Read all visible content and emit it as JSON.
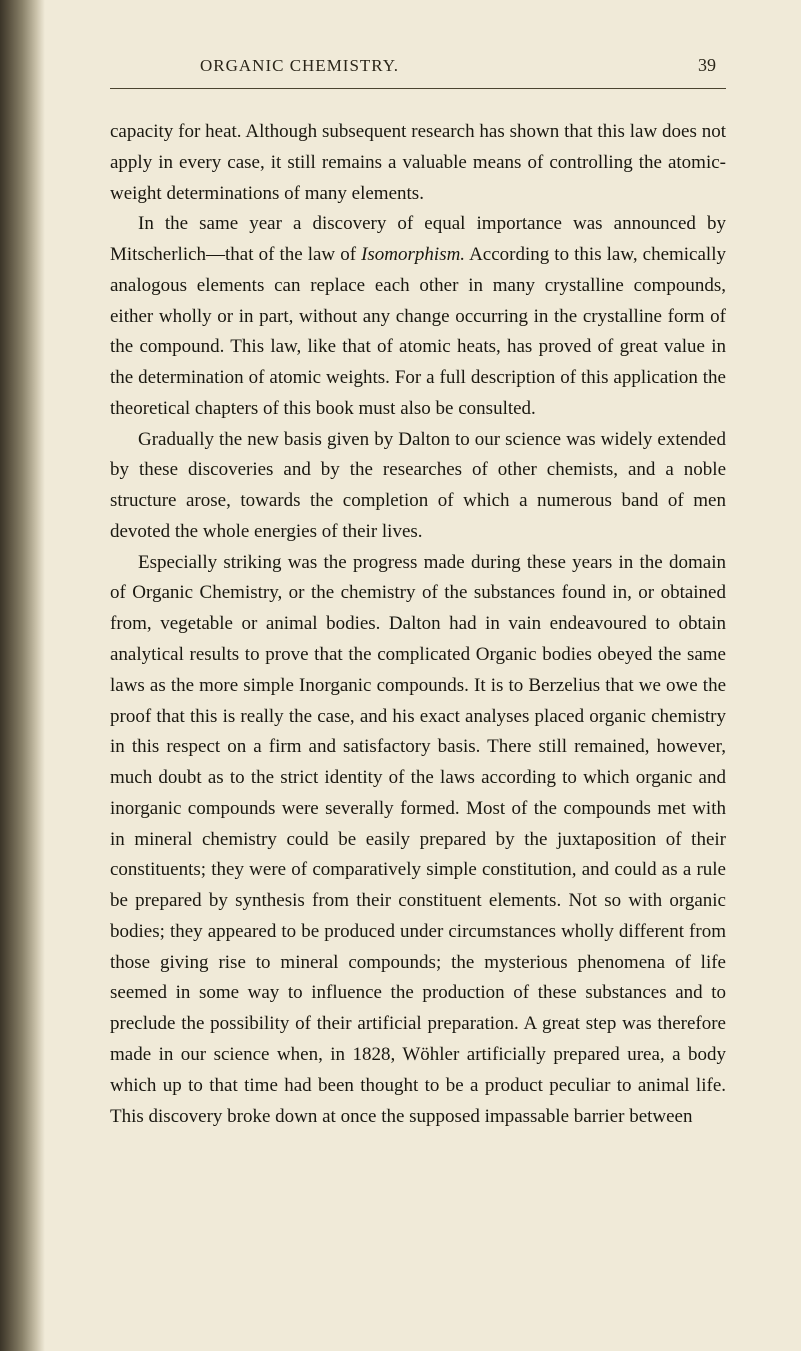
{
  "header": {
    "title": "ORGANIC CHEMISTRY.",
    "page_number": "39"
  },
  "paragraphs": {
    "p1_a": "capacity for heat. Although subsequent research has shown that this law does not apply in every case, it still remains a valuable means of controlling the atomic-weight determinations of many elements.",
    "p2_a": "In the same year a discovery of equal importance was announced by Mitscherlich—that of the law of ",
    "p2_italic": "Isomorphism.",
    "p2_b": " According to this law, chemically analogous elements can replace each other in many crystalline compounds, either wholly or in part, without any change occurring in the crystalline form of the compound. This law, like that of atomic heats, has proved of great value in the determination of atomic weights. For a full description of this application the theoretical chapters of this book must also be consulted.",
    "p3_a": "Gradually the new basis given by Dalton to our science was widely extended by these discoveries and by the researches of other chemists, and a noble structure arose, towards the completion of which a numerous band of men devoted the whole energies of their lives.",
    "p4_a": "Especially striking was the progress made during these years in the domain of Organic Chemistry, or the chemistry of the substances found in, or obtained from, vegetable or animal bodies. Dalton had in vain endeavoured to obtain analytical results to prove that the complicated Organic bodies obeyed the same laws as the more simple Inorganic compounds. It is to Berzelius that we owe the proof that this is really the case, and his exact analyses placed organic chemistry in this respect on a firm and satisfactory basis. There still remained, however, much doubt as to the strict identity of the laws according to which organic and inorganic compounds were severally formed. Most of the compounds met with in mineral chemistry could be easily prepared by the juxtaposition of their constituents; they were of comparatively simple constitution, and could as a rule be prepared by synthesis from their constituent elements. Not so with organic bodies; they appeared to be produced under circumstances wholly different from those giving rise to mineral compounds; the mysterious phenomena of life seemed in some way to influence the production of these substances and to preclude the possibility of their artificial preparation. A great step was therefore made in our science when, in 1828, Wöhler artificially prepared urea, a body which up to that time had been thought to be a product peculiar to animal life. This discovery broke down at once the supposed impassable barrier between"
  },
  "style": {
    "background_color": "#f0ead8",
    "text_color": "#1a1810",
    "header_color": "#2a2518",
    "divider_color": "#4a4430",
    "body_font_size": 19,
    "header_font_size": 17,
    "page_number_font_size": 18,
    "line_height": 1.62,
    "text_indent": 28
  }
}
